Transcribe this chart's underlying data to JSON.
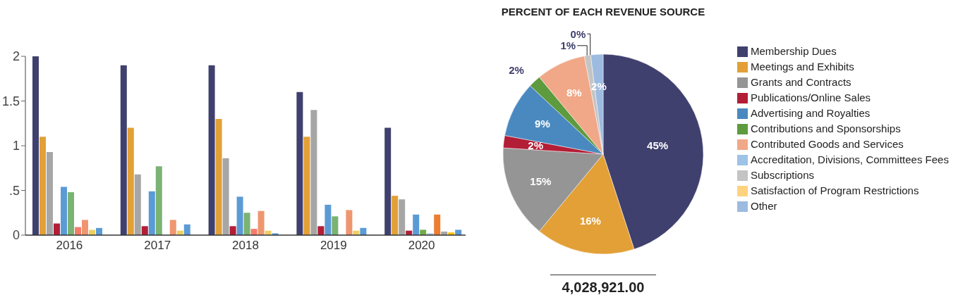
{
  "chart_data": [
    {
      "type": "bar",
      "categories": [
        "2016",
        "2017",
        "2018",
        "2019",
        "2020"
      ],
      "ylim": [
        0,
        2
      ],
      "yticks": [
        0,
        {
          "value": 0.5,
          "label": ".5"
        },
        1,
        1.5,
        2
      ],
      "grid": false,
      "legend": false,
      "series": [
        {
          "color": "#40406e",
          "values": [
            2.0,
            1.9,
            1.9,
            1.6,
            1.2
          ]
        },
        {
          "color": "#e2a036",
          "values": [
            1.1,
            1.2,
            1.3,
            1.1,
            0.44
          ]
        },
        {
          "color": "#a6a6a6",
          "values": [
            0.93,
            0.68,
            0.86,
            1.4,
            0.4
          ]
        },
        {
          "color": "#b31e37",
          "values": [
            0.13,
            0.1,
            0.1,
            0.1,
            0.05
          ]
        },
        {
          "color": "#5b9bd5",
          "values": [
            0.54,
            0.49,
            0.43,
            0.34,
            0.23
          ]
        },
        {
          "color": "#7ab373",
          "colors": [
            "#7ab373",
            "#7ab373",
            "#7ab373",
            "#7ab373",
            "#70ad47"
          ],
          "values": [
            0.48,
            0.77,
            0.25,
            0.21,
            0.06
          ]
        },
        {
          "color": "#f47c6a",
          "colors": [
            "#f47c6a",
            "#f47c6a",
            "#f47c6a",
            "#f47c6a",
            "#9dc3e6"
          ],
          "values": [
            0.09,
            null,
            0.07,
            null,
            0.02
          ]
        },
        {
          "color": "#ef9670",
          "colors": [
            "#ef9670",
            "#ef9670",
            "#ef9670",
            "#ef9670",
            "#ed7d31"
          ],
          "values": [
            0.17,
            0.17,
            0.27,
            0.28,
            0.23
          ]
        },
        {
          "color": "#ecd062",
          "colors": [
            "#ecd062",
            "#ecd062",
            "#ecd062",
            "#ecd062",
            "#a6a6a6"
          ],
          "values": [
            0.06,
            0.05,
            0.05,
            0.05,
            0.04
          ]
        },
        {
          "color": "#5b9bd5",
          "colors": [
            "#5b9bd5",
            "#5b9bd5",
            "#5b9bd5",
            "#5b9bd5",
            "#ffc000"
          ],
          "values": [
            0.08,
            0.12,
            0.02,
            0.08,
            0.03
          ]
        },
        {
          "color": "#5b9bd5",
          "values": [
            null,
            null,
            null,
            null,
            0.06
          ]
        }
      ]
    },
    {
      "type": "pie",
      "title": "PERCENT OF EACH REVENUE SOURCE",
      "legend": "right",
      "annotations": [
        "4,028,921.00"
      ],
      "categories": [
        "Membership Dues",
        "Meetings and Exhibits",
        "Grants and Contracts",
        "Publications/Online Sales",
        "Advertising and Royalties",
        "Contributions and Sponsorships",
        "Contributed Goods and Services",
        "Accreditation, Divisions, Committees Fees",
        "Subscriptions",
        "Satisfaction of Program Restrictions",
        "Other"
      ],
      "values": [
        45,
        16,
        15,
        2,
        9,
        2,
        8,
        0,
        1,
        0,
        2
      ],
      "value_labels": [
        "45%",
        "16%",
        "15%",
        "2%",
        "9%",
        "2%",
        "8%",
        null,
        "1%",
        "0%",
        "2%"
      ],
      "colors": [
        "#40406e",
        "#e2a036",
        "#959595",
        "#b31e37",
        "#4a89c0",
        "#5e9a3e",
        "#f0a888",
        "#9dc3e6",
        "#c4c4c4",
        "#ffd27f",
        "#9dbbe0"
      ]
    }
  ]
}
